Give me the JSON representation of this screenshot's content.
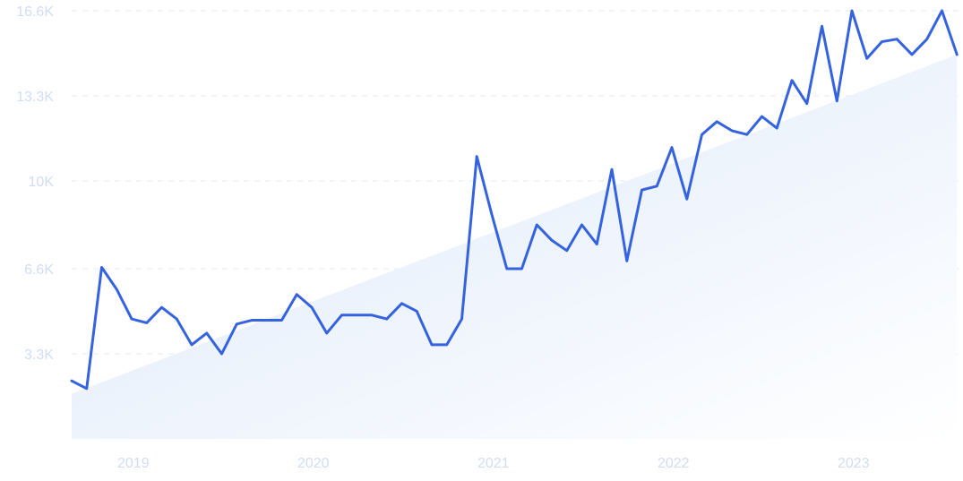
{
  "chart_data": {
    "type": "line",
    "title": "",
    "xlabel": "",
    "ylabel": "",
    "ylim": [
      0,
      16600
    ],
    "yticks": [
      {
        "value": 3300,
        "label": "3.3K"
      },
      {
        "value": 6600,
        "label": "6.6K"
      },
      {
        "value": 10000,
        "label": "10K"
      },
      {
        "value": 13300,
        "label": "13.3K"
      },
      {
        "value": 16600,
        "label": "16.6K"
      }
    ],
    "xticks": [
      {
        "value": 2019,
        "label": "2019"
      },
      {
        "value": 2020,
        "label": "2020"
      },
      {
        "value": 2021,
        "label": "2021"
      },
      {
        "value": 2022,
        "label": "2022"
      },
      {
        "value": 2023,
        "label": "2023"
      }
    ],
    "grid": true,
    "legend": "none",
    "colors": {
      "line": "#3563E0",
      "grid": "#E3E8F2",
      "tick_text": "#D2DCF4",
      "trend_fill_start": "#DCE8FA",
      "trend_fill_end": "#FFFFFF"
    },
    "trend": {
      "start": 1750,
      "end": 14900
    },
    "series": [
      {
        "name": "",
        "x": [
          "2018-11",
          "2018-12",
          "2019-01",
          "2019-02",
          "2019-03",
          "2019-04",
          "2019-05",
          "2019-06",
          "2019-07",
          "2019-08",
          "2019-09",
          "2019-10",
          "2019-11",
          "2019-12",
          "2020-01",
          "2020-02",
          "2020-03",
          "2020-04",
          "2020-05",
          "2020-06",
          "2020-07",
          "2020-08",
          "2020-09",
          "2020-10",
          "2020-11",
          "2020-12",
          "2021-01",
          "2021-02",
          "2021-03",
          "2021-04",
          "2021-05",
          "2021-06",
          "2021-07",
          "2021-08",
          "2021-09",
          "2021-10",
          "2021-11",
          "2021-12",
          "2022-01",
          "2022-02",
          "2022-03",
          "2022-04",
          "2022-05",
          "2022-06",
          "2022-07",
          "2022-08",
          "2022-09",
          "2022-10",
          "2022-11",
          "2022-12",
          "2023-01",
          "2023-02",
          "2023-03",
          "2023-04",
          "2023-05",
          "2023-06",
          "2023-07",
          "2023-08",
          "2023-09",
          "2023-10"
        ],
        "values": [
          2250,
          1950,
          6650,
          5800,
          4650,
          4500,
          5100,
          4650,
          3650,
          4100,
          3300,
          4450,
          4600,
          4600,
          4600,
          5600,
          5100,
          4100,
          4800,
          4800,
          4800,
          4650,
          5250,
          4950,
          3650,
          3650,
          4650,
          10950,
          8700,
          6600,
          6600,
          8300,
          7700,
          7300,
          8300,
          7550,
          10450,
          6900,
          9650,
          9800,
          11300,
          9300,
          11800,
          12300,
          11950,
          11800,
          12500,
          12050,
          13900,
          13000,
          16000,
          13100,
          16600,
          14750,
          15400,
          15500,
          14900,
          15500,
          16600,
          14900
        ]
      }
    ]
  }
}
